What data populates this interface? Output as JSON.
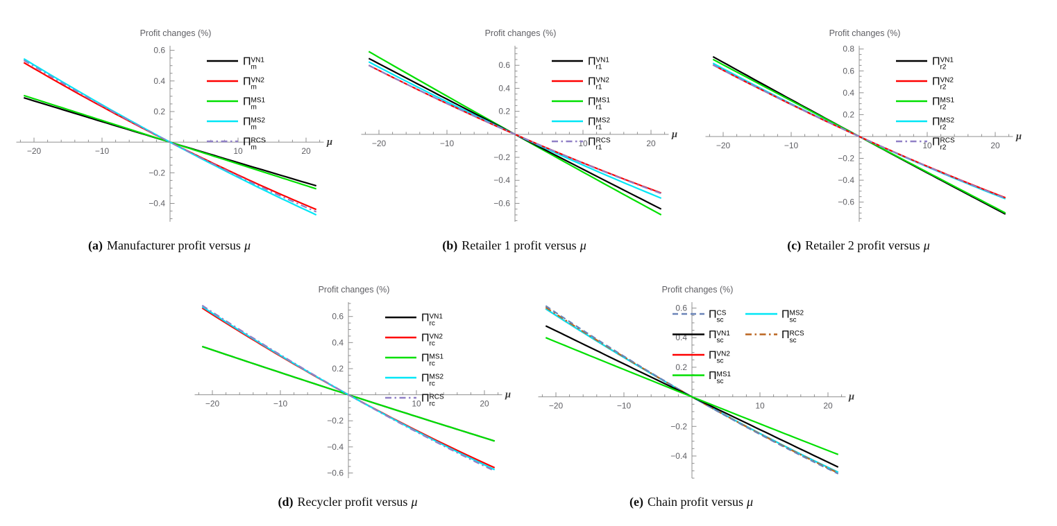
{
  "page": {
    "background": "#ffffff",
    "colors": {
      "axis": "#8f8f8f",
      "tick_label": "#5f5f64",
      "title": "#5f5f64",
      "mu_label": "#3a3a3a",
      "caption": "#0b0b0b"
    }
  },
  "chart_data": [
    {
      "id": "a",
      "type": "line",
      "title": "Profit changes (%)",
      "xlabel": "μ",
      "caption_label": "(a)",
      "caption_text": "Manufacturer profit versus",
      "caption_symbol": "μ",
      "x_ticks": [
        -20,
        -10,
        10,
        20
      ],
      "y_ticks": [
        -0.4,
        -0.2,
        0.2,
        0.4,
        0.6
      ],
      "x_minor_step": 2,
      "y_minor_step": 0.05,
      "x_data_range": [
        -21.5,
        21.5
      ],
      "y_axis_range": [
        -0.52,
        0.63
      ],
      "legend": {
        "columns": 1,
        "position": "upper-right"
      },
      "series": [
        {
          "label_symbol": "Π",
          "label_sub": "m",
          "label_sup": "VN1",
          "color": "#000000",
          "line_style": "solid",
          "z": 1,
          "legend_row": 0,
          "legend_col": 0,
          "mu_points": [
            -21.5,
            0,
            21.5
          ],
          "y_points": [
            0.29,
            0,
            -0.285
          ]
        },
        {
          "label_symbol": "Π",
          "label_sub": "m",
          "label_sup": "VN2",
          "color": "#fe0000",
          "line_style": "solid",
          "z": 3,
          "legend_row": 1,
          "legend_col": 0,
          "mu_points": [
            -21.5,
            0,
            21.5
          ],
          "y_points": [
            0.52,
            0,
            -0.44
          ]
        },
        {
          "label_symbol": "Π",
          "label_sub": "m",
          "label_sup": "MS1",
          "color": "#00df00",
          "line_style": "solid",
          "z": 2,
          "legend_row": 2,
          "legend_col": 0,
          "mu_points": [
            -21.5,
            0,
            21.5
          ],
          "y_points": [
            0.305,
            0,
            -0.305
          ]
        },
        {
          "label_symbol": "Π",
          "label_sub": "m",
          "label_sup": "MS2",
          "color": "#00e6f6",
          "line_style": "solid",
          "z": 4,
          "legend_row": 3,
          "legend_col": 0,
          "mu_points": [
            -21.5,
            0,
            21.5
          ],
          "y_points": [
            0.545,
            0,
            -0.475
          ]
        },
        {
          "label_symbol": "Π",
          "label_sub": "m",
          "label_sup": "RCS",
          "color": "#9080c6",
          "line_style": "dashdot",
          "z": 5,
          "legend_row": 4,
          "legend_col": 0,
          "mu_points": [
            -21.5,
            0,
            21.5
          ],
          "y_points": [
            0.535,
            0,
            -0.455
          ]
        }
      ]
    },
    {
      "id": "b",
      "type": "line",
      "title": "Profit changes (%)",
      "xlabel": "μ",
      "caption_label": "(b)",
      "caption_text": "Retailer 1 profit versus",
      "caption_symbol": "μ",
      "x_ticks": [
        -20,
        -10,
        10,
        20
      ],
      "y_ticks": [
        -0.6,
        -0.4,
        -0.2,
        0.2,
        0.4,
        0.6
      ],
      "x_minor_step": 2,
      "y_minor_step": 0.05,
      "x_data_range": [
        -21.5,
        21.5
      ],
      "y_axis_range": [
        -0.76,
        0.77
      ],
      "legend": {
        "columns": 1,
        "position": "upper-right"
      },
      "series": [
        {
          "label_symbol": "Π",
          "label_sub": "r1",
          "label_sup": "VN1",
          "color": "#000000",
          "line_style": "solid",
          "z": 2,
          "legend_row": 0,
          "legend_col": 0,
          "mu_points": [
            -21.5,
            0,
            21.5
          ],
          "y_points": [
            0.66,
            0,
            -0.65
          ]
        },
        {
          "label_symbol": "Π",
          "label_sub": "r1",
          "label_sup": "VN2",
          "color": "#fe0000",
          "line_style": "solid",
          "z": 4,
          "legend_row": 1,
          "legend_col": 0,
          "mu_points": [
            -21.5,
            0,
            21.5
          ],
          "y_points": [
            0.6,
            0,
            -0.51
          ]
        },
        {
          "label_symbol": "Π",
          "label_sub": "r1",
          "label_sup": "MS1",
          "color": "#00df00",
          "line_style": "solid",
          "z": 1,
          "legend_row": 2,
          "legend_col": 0,
          "mu_points": [
            -21.5,
            0,
            21.5
          ],
          "y_points": [
            0.72,
            0,
            -0.7
          ]
        },
        {
          "label_symbol": "Π",
          "label_sub": "r1",
          "label_sup": "MS2",
          "color": "#00e6f6",
          "line_style": "solid",
          "z": 3,
          "legend_row": 3,
          "legend_col": 0,
          "mu_points": [
            -21.5,
            0,
            21.5
          ],
          "y_points": [
            0.63,
            0,
            -0.555
          ]
        },
        {
          "label_symbol": "Π",
          "label_sub": "r1",
          "label_sup": "RCS",
          "color": "#9080c6",
          "line_style": "dashdot",
          "z": 5,
          "legend_row": 4,
          "legend_col": 0,
          "mu_points": [
            -21.5,
            0,
            21.5
          ],
          "y_points": [
            0.6,
            0,
            -0.515
          ]
        }
      ]
    },
    {
      "id": "c",
      "type": "line",
      "title": "Profit changes (%)",
      "xlabel": "μ",
      "caption_label": "(c)",
      "caption_text": "Retailer 2 profit versus",
      "caption_symbol": "μ",
      "x_ticks": [
        -20,
        -10,
        10,
        20
      ],
      "y_ticks": [
        -0.6,
        -0.4,
        -0.2,
        0.2,
        0.4,
        0.6,
        0.8
      ],
      "x_minor_step": 2,
      "y_minor_step": 0.05,
      "x_data_range": [
        -21.5,
        21.5
      ],
      "y_axis_range": [
        -0.78,
        0.83
      ],
      "legend": {
        "columns": 1,
        "position": "upper-right"
      },
      "series": [
        {
          "label_symbol": "Π",
          "label_sub": "r2",
          "label_sup": "VN1",
          "color": "#000000",
          "line_style": "solid",
          "z": 1,
          "legend_row": 0,
          "legend_col": 0,
          "mu_points": [
            -21.5,
            0,
            21.5
          ],
          "y_points": [
            0.73,
            0,
            -0.71
          ]
        },
        {
          "label_symbol": "Π",
          "label_sub": "r2",
          "label_sup": "VN2",
          "color": "#fe0000",
          "line_style": "solid",
          "z": 4,
          "legend_row": 1,
          "legend_col": 0,
          "mu_points": [
            -21.5,
            0,
            21.5
          ],
          "y_points": [
            0.655,
            0,
            -0.56
          ]
        },
        {
          "label_symbol": "Π",
          "label_sub": "r2",
          "label_sup": "MS1",
          "color": "#00df00",
          "line_style": "solid",
          "z": 2,
          "legend_row": 2,
          "legend_col": 0,
          "mu_points": [
            -21.5,
            0,
            21.5
          ],
          "y_points": [
            0.705,
            0,
            -0.7
          ]
        },
        {
          "label_symbol": "Π",
          "label_sub": "r2",
          "label_sup": "MS2",
          "color": "#00e6f6",
          "line_style": "solid",
          "z": 3,
          "legend_row": 3,
          "legend_col": 0,
          "mu_points": [
            -21.5,
            0,
            21.5
          ],
          "y_points": [
            0.67,
            0,
            -0.57
          ]
        },
        {
          "label_symbol": "Π",
          "label_sub": "r2",
          "label_sup": "RCS",
          "color": "#9080c6",
          "line_style": "dashdot",
          "z": 5,
          "legend_row": 4,
          "legend_col": 0,
          "mu_points": [
            -21.5,
            0,
            21.5
          ],
          "y_points": [
            0.655,
            0,
            -0.565
          ]
        }
      ]
    },
    {
      "id": "d",
      "type": "line",
      "title": "Profit changes (%)",
      "xlabel": "μ",
      "caption_label": "(d)",
      "caption_text": "Recycler profit versus",
      "caption_symbol": "μ",
      "x_ticks": [
        -20,
        -10,
        10,
        20
      ],
      "y_ticks": [
        -0.6,
        -0.4,
        -0.2,
        0.2,
        0.4,
        0.6
      ],
      "x_minor_step": 2,
      "y_minor_step": 0.05,
      "x_data_range": [
        -21.5,
        21.5
      ],
      "y_axis_range": [
        -0.64,
        0.71
      ],
      "legend": {
        "columns": 1,
        "position": "upper-right"
      },
      "series": [
        {
          "label_symbol": "Π",
          "label_sub": "rc",
          "label_sup": "VN1",
          "color": "#000000",
          "line_style": "solid",
          "z": 1,
          "legend_row": 0,
          "legend_col": 0,
          "mu_points": [
            -21.5,
            0,
            21.5
          ],
          "y_points": [
            0.37,
            0,
            -0.355
          ]
        },
        {
          "label_symbol": "Π",
          "label_sub": "rc",
          "label_sup": "VN2",
          "color": "#fe0000",
          "line_style": "solid",
          "z": 3,
          "legend_row": 1,
          "legend_col": 0,
          "mu_points": [
            -21.5,
            0,
            21.5
          ],
          "y_points": [
            0.665,
            0,
            -0.56
          ]
        },
        {
          "label_symbol": "Π",
          "label_sub": "rc",
          "label_sup": "MS1",
          "color": "#00df00",
          "line_style": "solid",
          "z": 2,
          "legend_row": 2,
          "legend_col": 0,
          "mu_points": [
            -21.5,
            0,
            21.5
          ],
          "y_points": [
            0.37,
            0,
            -0.355
          ]
        },
        {
          "label_symbol": "Π",
          "label_sub": "rc",
          "label_sup": "MS2",
          "color": "#00e6f6",
          "line_style": "solid",
          "z": 4,
          "legend_row": 3,
          "legend_col": 0,
          "mu_points": [
            -21.5,
            0,
            21.5
          ],
          "y_points": [
            0.675,
            0,
            -0.575
          ]
        },
        {
          "label_symbol": "Π",
          "label_sub": "rc",
          "label_sup": "RCS",
          "color": "#9080c6",
          "line_style": "dashdot",
          "z": 5,
          "legend_row": 4,
          "legend_col": 0,
          "mu_points": [
            -21.5,
            0,
            21.5
          ],
          "y_points": [
            0.685,
            0,
            -0.585
          ]
        }
      ]
    },
    {
      "id": "e",
      "type": "line",
      "title": "Profit changes (%)",
      "xlabel": "μ",
      "caption_label": "(e)",
      "caption_text": "Chain profit versus",
      "caption_symbol": "μ",
      "x_ticks": [
        -20,
        -10,
        10,
        20
      ],
      "y_ticks": [
        -0.4,
        -0.2,
        0.2,
        0.4,
        0.6
      ],
      "x_minor_step": 2,
      "y_minor_step": 0.05,
      "x_data_range": [
        -21.5,
        21.5
      ],
      "y_axis_range": [
        -0.55,
        0.64
      ],
      "legend": {
        "columns": 2,
        "position": "upper-right"
      },
      "series": [
        {
          "label_symbol": "Π",
          "label_sub": "sc",
          "label_sup": "CS",
          "color": "#6a84b8",
          "line_style": "dashed",
          "z": 4,
          "legend_row": 0,
          "legend_col": 0,
          "mu_points": [
            -21.5,
            0,
            21.5
          ],
          "y_points": [
            0.615,
            0,
            -0.52
          ]
        },
        {
          "label_symbol": "Π",
          "label_sub": "sc",
          "label_sup": "VN1",
          "color": "#000000",
          "line_style": "solid",
          "z": 5,
          "legend_row": 1,
          "legend_col": 0,
          "mu_points": [
            -21.5,
            0,
            21.5
          ],
          "y_points": [
            0.48,
            0,
            -0.475
          ]
        },
        {
          "label_symbol": "Π",
          "label_sub": "sc",
          "label_sup": "VN2",
          "color": "#fe0000",
          "line_style": "solid",
          "z": 1,
          "legend_row": 2,
          "legend_col": 0,
          "mu_points": [
            -21.5,
            0,
            21.5
          ],
          "y_points": [
            0.595,
            0,
            -0.51
          ]
        },
        {
          "label_symbol": "Π",
          "label_sub": "sc",
          "label_sup": "MS1",
          "color": "#00df00",
          "line_style": "solid",
          "z": 6,
          "legend_row": 3,
          "legend_col": 0,
          "mu_points": [
            -21.5,
            0,
            21.5
          ],
          "y_points": [
            0.4,
            0,
            -0.39
          ]
        },
        {
          "label_symbol": "Π",
          "label_sub": "sc",
          "label_sup": "MS2",
          "color": "#00e6f6",
          "line_style": "solid",
          "z": 2,
          "legend_row": 0,
          "legend_col": 1,
          "mu_points": [
            -21.5,
            0,
            21.5
          ],
          "y_points": [
            0.595,
            0,
            -0.51
          ]
        },
        {
          "label_symbol": "Π",
          "label_sub": "sc",
          "label_sup": "RCS",
          "color": "#ba641e",
          "line_style": "dashdot",
          "z": 3,
          "legend_row": 1,
          "legend_col": 1,
          "mu_points": [
            -21.5,
            0,
            21.5
          ],
          "y_points": [
            0.605,
            0,
            -0.515
          ]
        }
      ]
    }
  ]
}
